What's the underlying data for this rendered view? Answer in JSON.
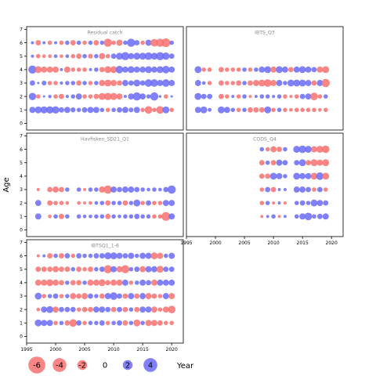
{
  "chart_data": {
    "type": "scatter",
    "ylabel": "Age",
    "xlabel": "Year",
    "colors": {
      "positive": "#6a6af8",
      "negative": "#f87070"
    },
    "legend": {
      "values": [
        -6,
        -4,
        -2,
        0,
        2,
        4
      ],
      "title": "Year",
      "placement": "bottom"
    },
    "ylim": [
      -0.5,
      7.2
    ],
    "yticks": [
      0,
      1,
      2,
      3,
      4,
      5,
      6,
      7
    ],
    "panels": [
      {
        "title": "Residual catch",
        "xlim": [
          1995,
          2022
        ],
        "xticks": [],
        "ages": [
          1,
          2,
          3,
          4,
          5,
          6
        ],
        "years": [
          1996,
          1997,
          1998,
          1999,
          2000,
          2001,
          2002,
          2003,
          2004,
          2005,
          2006,
          2007,
          2008,
          2009,
          2010,
          2011,
          2012,
          2013,
          2014,
          2015,
          2016,
          2017,
          2018,
          2019,
          2020
        ],
        "residuals": {
          "1": [
            2.0,
            2.5,
            2.6,
            2.8,
            2.8,
            1.5,
            2.0,
            1.3,
            1.0,
            1.5,
            2.0,
            2.0,
            1.0,
            -1.0,
            1.0,
            1.5,
            2.0,
            1.2,
            2.0,
            -1.0,
            -3.0,
            -1.0,
            -3.0,
            2.5,
            -1.0
          ],
          "2": [
            2.8,
            -1.0,
            0.3,
            0.6,
            -1.0,
            -1.5,
            0.6,
            1.0,
            2.0,
            -1.0,
            -1.0,
            -1.5,
            -2.5,
            -2.8,
            -2.6,
            -2.0,
            0.5,
            2.0,
            3.5,
            2.0,
            1.0,
            3.5,
            0.4,
            -1.0,
            0.3
          ],
          "3": [
            1.5,
            0.3,
            1.2,
            -1.0,
            -1.0,
            0.6,
            1.0,
            1.0,
            -1.5,
            1.0,
            -1.0,
            1.0,
            -2.0,
            -2.5,
            -2.0,
            -1.5,
            2.0,
            1.5,
            2.5,
            1.5,
            3.0,
            3.0,
            2.0,
            3.0,
            2.0
          ],
          "4": [
            3.5,
            -2.5,
            -2.0,
            -2.0,
            -2.0,
            0.5,
            -2.0,
            -1.0,
            -1.0,
            -1.0,
            0.5,
            1.0,
            -1.5,
            -2.5,
            -2.5,
            3.0,
            2.0,
            2.5,
            2.0,
            2.0,
            2.5,
            2.0,
            2.5,
            3.0,
            2.0
          ],
          "5": [
            0.5,
            -1.0,
            -0.7,
            -0.7,
            0.7,
            -0.7,
            0.7,
            -1.0,
            -1.5,
            1.0,
            -1.2,
            1.0,
            -2.0,
            -1.0,
            1.5,
            2.5,
            3.5,
            2.0,
            2.5,
            2.5,
            3.0,
            2.5,
            3.5,
            2.8,
            1.5
          ],
          "6": [
            0.5,
            -1.5,
            0.5,
            -1.0,
            0.5,
            -1.0,
            1.0,
            -1.5,
            1.0,
            -1.0,
            1.0,
            -1.5,
            1.0,
            -3.5,
            -1.0,
            -2.0,
            1.0,
            3.5,
            1.5,
            -1.0,
            2.0,
            -3.0,
            -3.5,
            -4.0,
            1.0
          ]
        }
      },
      {
        "title": "IBTS_Q3",
        "xlim": [
          1995,
          2022
        ],
        "xticks": [],
        "ages": [
          1,
          2,
          3,
          4
        ],
        "years": [
          1997,
          1998,
          1999,
          2001,
          2002,
          2003,
          2004,
          2005,
          2006,
          2007,
          2008,
          2009,
          2010,
          2011,
          2012,
          2013,
          2014,
          2015,
          2016,
          2017,
          2018,
          2019
        ],
        "residuals": {
          "1": [
            2.0,
            2.5,
            0.8,
            2.5,
            2.0,
            1.0,
            -1.0,
            1.0,
            -1.5,
            -1.5,
            -1.5,
            2.5,
            -1.0,
            1.0,
            -1.0,
            -0.7,
            -1.0,
            -1.0,
            -1.0,
            -1.0,
            -0.7,
            -1.0
          ],
          "2": [
            2.5,
            1.5,
            1.5,
            -1.5,
            -1.0,
            0.5,
            -1.0,
            1.0,
            -0.5,
            0.5,
            1.0,
            1.0,
            0.5,
            1.0,
            -1.0,
            -0.5,
            -1.0,
            1.5,
            2.0,
            -3.0,
            -1.0,
            1.0
          ],
          "3": [
            2.0,
            0.7,
            -1.0,
            -1.5,
            -1.0,
            -1.0,
            -1.5,
            1.0,
            -1.5,
            -2.0,
            -2.5,
            -3.0,
            -2.0,
            2.0,
            1.0,
            2.5,
            2.5,
            2.5,
            2.0,
            -1.5,
            2.0,
            -3.5
          ],
          "4": [
            2.5,
            -1.0,
            -1.0,
            -1.5,
            -1.0,
            -1.0,
            -1.0,
            1.0,
            -1.0,
            1.0,
            2.0,
            2.5,
            -2.0,
            2.5,
            2.0,
            -1.5,
            2.0,
            2.5,
            2.0,
            1.5,
            -2.0,
            -2.5
          ]
        }
      },
      {
        "title": "Havfisken_SD21_Q1",
        "xlim": [
          1995,
          2022
        ],
        "xticks": [],
        "ages": [
          1,
          2,
          3
        ],
        "years": [
          1997,
          1999,
          2000,
          2001,
          2002,
          2004,
          2005,
          2006,
          2007,
          2008,
          2009,
          2010,
          2011,
          2012,
          2013,
          2014,
          2015,
          2016,
          2017,
          2018,
          2019,
          2020
        ],
        "residuals": {
          "1": [
            2.0,
            -0.7,
            1.0,
            -1.5,
            1.0,
            1.0,
            0.7,
            0.7,
            1.0,
            1.0,
            -1.5,
            1.0,
            0.7,
            1.0,
            1.0,
            1.5,
            1.0,
            1.0,
            -1.0,
            -1.0,
            -4.0,
            2.0
          ],
          "2": [
            2.0,
            -1.5,
            -1.0,
            -1.0,
            -0.7,
            -0.7,
            -0.5,
            -0.7,
            0.7,
            1.0,
            -1.5,
            1.0,
            1.0,
            -1.5,
            1.0,
            2.5,
            -1.0,
            1.5,
            -1.0,
            -1.0,
            2.0,
            2.0
          ],
          "3": [
            -0.5,
            -1.5,
            -2.0,
            -1.5,
            1.0,
            1.0,
            -0.5,
            1.0,
            1.0,
            -2.0,
            -3.5,
            2.0,
            1.5,
            2.0,
            2.0,
            1.5,
            1.0,
            0.7,
            1.0,
            0.7,
            1.5,
            3.5
          ]
        }
      },
      {
        "title": "CODS_Q4",
        "xlim": [
          1995,
          2022
        ],
        "xticks": [
          1995,
          2000,
          2005,
          2010,
          2015,
          2020
        ],
        "ages": [
          1,
          2,
          3,
          4,
          5,
          6
        ],
        "years": [
          2008,
          2009,
          2010,
          2011,
          2012,
          2014,
          2015,
          2016,
          2017,
          2018,
          2019
        ],
        "residuals": {
          "1": [
            -0.5,
            0.5,
            1.0,
            -0.5,
            0.5,
            1.0,
            2.0,
            3.0,
            1.0,
            1.5,
            2.0
          ],
          "2": [
            -1.0,
            1.0,
            -0.5,
            0.5,
            -0.5,
            1.0,
            1.5,
            1.0,
            2.5,
            2.0,
            1.5
          ],
          "3": [
            -1.0,
            1.5,
            -1.5,
            0.5,
            0.5,
            2.0,
            2.0,
            1.5,
            -1.0,
            1.5,
            -1.0
          ],
          "4": [
            -1.5,
            -1.5,
            2.5,
            2.0,
            1.0,
            2.5,
            2.0,
            2.0,
            -2.5,
            3.0,
            -2.5
          ],
          "5": [
            -1.5,
            1.0,
            -1.5,
            2.0,
            1.5,
            1.5,
            2.5,
            -1.5,
            -2.5,
            -2.0,
            -2.5
          ],
          "6": [
            1.0,
            -1.0,
            -2.0,
            -1.5,
            1.0,
            2.5,
            3.0,
            2.5,
            -2.0,
            -2.5,
            -3.0
          ]
        }
      },
      {
        "title": "IBTSQ1_1-6",
        "xlim": [
          1995,
          2022
        ],
        "xticks": [
          1995,
          2000,
          2005,
          2010,
          2015,
          2020
        ],
        "ages": [
          1,
          2,
          3,
          4,
          5,
          6
        ],
        "years": [
          1997,
          1998,
          1999,
          2000,
          2001,
          2002,
          2003,
          2004,
          2005,
          2006,
          2007,
          2008,
          2009,
          2010,
          2011,
          2012,
          2013,
          2014,
          2015,
          2016,
          2017,
          2018,
          2019,
          2020
        ],
        "residuals": {
          "1": [
            2.5,
            2.0,
            2.0,
            -1.0,
            1.0,
            -1.5,
            -3.0,
            1.5,
            -1.0,
            1.0,
            1.0,
            1.5,
            -1.0,
            1.0,
            1.5,
            -1.5,
            1.0,
            -2.5,
            1.0,
            -2.0,
            -2.0,
            -1.5,
            -1.0,
            -1.0
          ],
          "2": [
            -0.7,
            2.0,
            2.5,
            -2.0,
            1.5,
            1.5,
            1.5,
            -1.0,
            -1.5,
            -1.5,
            2.0,
            2.0,
            1.5,
            -1.5,
            1.5,
            -1.5,
            1.0,
            -1.5,
            2.0,
            2.0,
            -2.0,
            -1.0,
            -2.0,
            -3.0
          ],
          "3": [
            2.5,
            -1.0,
            1.0,
            1.5,
            -1.0,
            1.0,
            -2.0,
            -1.5,
            -2.0,
            1.5,
            1.0,
            -1.5,
            2.0,
            3.0,
            1.5,
            -1.5,
            2.0,
            -1.5,
            2.0,
            -2.0,
            -1.5,
            -1.0,
            2.0,
            -2.0
          ],
          "4": [
            -2.0,
            -2.0,
            -2.5,
            -2.0,
            -1.5,
            1.0,
            -1.5,
            -1.5,
            1.0,
            -2.0,
            -2.0,
            -2.5,
            -1.5,
            -2.0,
            -2.0,
            2.0,
            -1.0,
            1.0,
            2.0,
            1.5,
            -2.0,
            2.0,
            2.0,
            2.0
          ],
          "5": [
            -1.5,
            -1.5,
            -1.5,
            -2.0,
            -1.5,
            -1.5,
            1.0,
            -1.5,
            -1.0,
            -1.5,
            1.0,
            1.5,
            -3.5,
            2.0,
            -2.0,
            -3.5,
            1.0,
            1.5,
            -2.0,
            2.0,
            2.0,
            -2.5,
            1.5,
            1.5
          ],
          "6": [
            -0.5,
            0.5,
            -1.5,
            1.0,
            -1.5,
            1.5,
            -1.0,
            1.5,
            1.0,
            1.0,
            1.5,
            1.5,
            2.5,
            2.5,
            2.0,
            1.5,
            2.0,
            1.0,
            2.0,
            2.0,
            -2.5,
            -2.0,
            1.0,
            2.0
          ]
        }
      }
    ]
  }
}
